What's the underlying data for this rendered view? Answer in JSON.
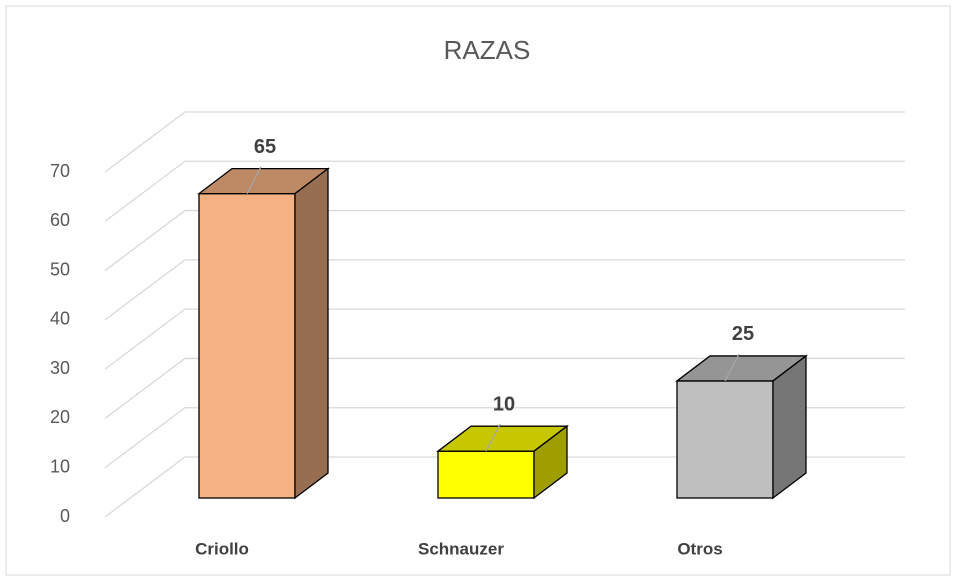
{
  "chart_data": {
    "type": "bar3d",
    "title": "RAZAS",
    "categories": [
      "Criollo",
      "Schnauzer",
      "Otros"
    ],
    "values": [
      65,
      10,
      25
    ],
    "colors": [
      "#f4b183",
      "#ffff00",
      "#bfbfbf"
    ],
    "ylim": [
      0,
      70
    ],
    "yticks": [
      0,
      10,
      20,
      30,
      40,
      50,
      60,
      70
    ],
    "grid": true
  }
}
